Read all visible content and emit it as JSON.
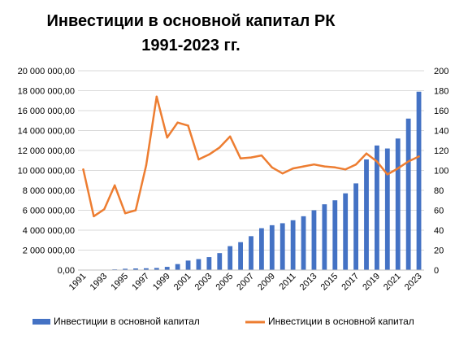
{
  "chart_data": {
    "type": "bar+line",
    "title": [
      "Инвестиции в основной капитал РК",
      "1991-2023 гг."
    ],
    "years": [
      1991,
      1992,
      1993,
      1994,
      1995,
      1996,
      1997,
      1998,
      1999,
      2000,
      2001,
      2002,
      2003,
      2004,
      2005,
      2006,
      2007,
      2008,
      2009,
      2010,
      2011,
      2012,
      2013,
      2014,
      2015,
      2016,
      2017,
      2018,
      2019,
      2020,
      2021,
      2022,
      2023
    ],
    "x_tick_labels": [
      "1991",
      "1993",
      "1995",
      "1997",
      "1999",
      "2001",
      "2003",
      "2005",
      "2007",
      "2009",
      "2011",
      "2013",
      "2015",
      "2017",
      "2019",
      "2021",
      "2023"
    ],
    "left_axis": {
      "ylim": [
        0,
        20000000
      ],
      "tick_labels": [
        "0,00",
        "2 000 000,00",
        "4 000 000,00",
        "6 000 000,00",
        "8 000 000,00",
        "10 000 000,00",
        "12 000 000,00",
        "14 000 000,00",
        "16 000 000,00",
        "18 000 000,00",
        "20 000 000,00"
      ]
    },
    "right_axis": {
      "ylim": [
        0,
        200
      ],
      "tick_labels": [
        "0",
        "20",
        "40",
        "60",
        "80",
        "100",
        "120",
        "140",
        "160",
        "180",
        "200"
      ]
    },
    "series": [
      {
        "name": "Инвестиции в основной капитал",
        "type": "bar",
        "axis": "left",
        "color": "#4472C4",
        "values": [
          1000,
          10000,
          30000,
          70000,
          130000,
          160000,
          180000,
          210000,
          320000,
          600000,
          950000,
          1100000,
          1300000,
          1700000,
          2400000,
          2800000,
          3400000,
          4200000,
          4500000,
          4700000,
          5000000,
          5400000,
          6000000,
          6600000,
          7000000,
          7700000,
          8700000,
          11100000,
          12500000,
          12200000,
          13200000,
          15200000,
          17900000
        ]
      },
      {
        "name": "Инвестиции в основной капитал",
        "type": "line",
        "axis": "right",
        "color": "#ED7D31",
        "values": [
          101,
          54,
          61,
          85,
          57,
          60,
          105,
          174,
          133,
          148,
          145,
          111,
          116,
          123,
          134,
          112,
          113,
          115,
          103,
          97,
          102,
          104,
          106,
          104,
          103,
          101,
          106,
          117,
          109,
          96,
          102,
          109,
          114
        ]
      }
    ],
    "legend": "bottom",
    "grid": true
  }
}
